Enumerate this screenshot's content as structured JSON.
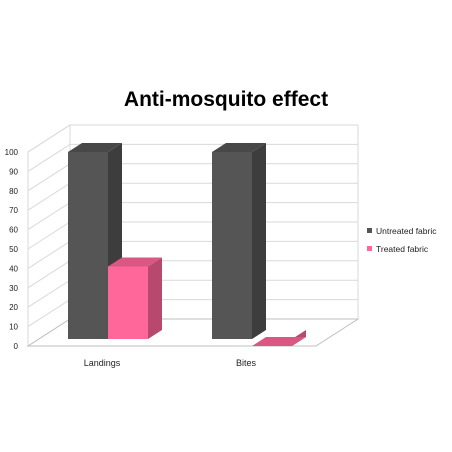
{
  "chart_data": {
    "type": "bar",
    "title": "Anti-mosquito effect",
    "categories": [
      "Landings",
      "Bites"
    ],
    "series": [
      {
        "name": "Untreated fabric",
        "values": [
          100,
          100
        ],
        "color": "#555555"
      },
      {
        "name": "Treated fabric",
        "values": [
          41,
          0
        ],
        "color": "#ff6699"
      }
    ],
    "ylim": [
      0,
      100
    ],
    "yticks": [
      0,
      10,
      20,
      30,
      40,
      50,
      60,
      70,
      80,
      90,
      100
    ],
    "grid": true,
    "legend": "right",
    "style": "3d"
  }
}
